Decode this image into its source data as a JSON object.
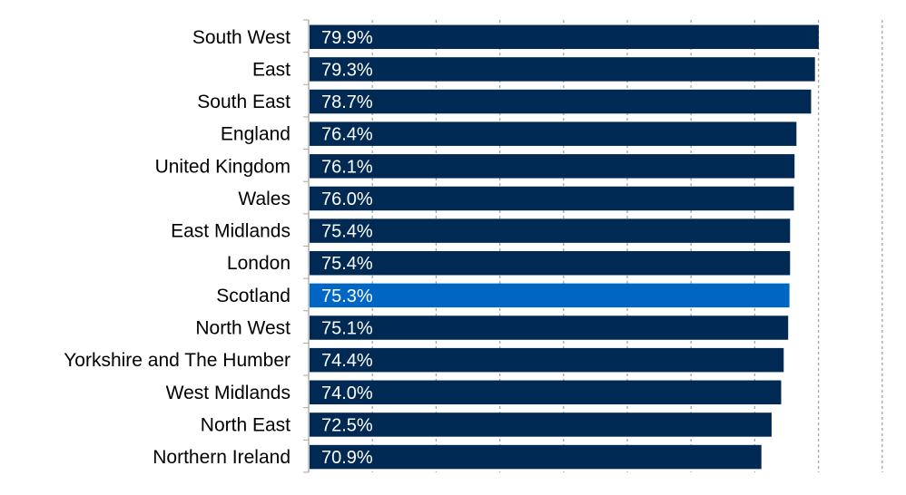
{
  "chart_data": {
    "type": "bar",
    "orientation": "horizontal",
    "title": "",
    "xlabel": "",
    "ylabel": "",
    "xlim": [
      0,
      90
    ],
    "grid": true,
    "value_suffix": "%",
    "categories": [
      "South West",
      "East",
      "South East",
      "England",
      "United Kingdom",
      "Wales",
      "East Midlands",
      "London",
      "Scotland",
      "North West",
      "Yorkshire and The Humber",
      "West Midlands",
      "North East",
      "Northern Ireland"
    ],
    "values": [
      79.9,
      79.3,
      78.7,
      76.4,
      76.1,
      76.0,
      75.4,
      75.4,
      75.3,
      75.1,
      74.4,
      74.0,
      72.5,
      70.9
    ],
    "data_labels": [
      "79.9%",
      "79.3%",
      "78.7%",
      "76.4%",
      "76.1%",
      "76.0%",
      "75.4%",
      "75.4%",
      "75.3%",
      "75.1%",
      "74.4%",
      "74.0%",
      "72.5%",
      "70.9%"
    ],
    "highlight_category": "Scotland",
    "colors": {
      "bar": "#002a54",
      "highlight": "#0066c4",
      "grid": "#a6a6a6",
      "axis": "#a6a6a6"
    }
  }
}
